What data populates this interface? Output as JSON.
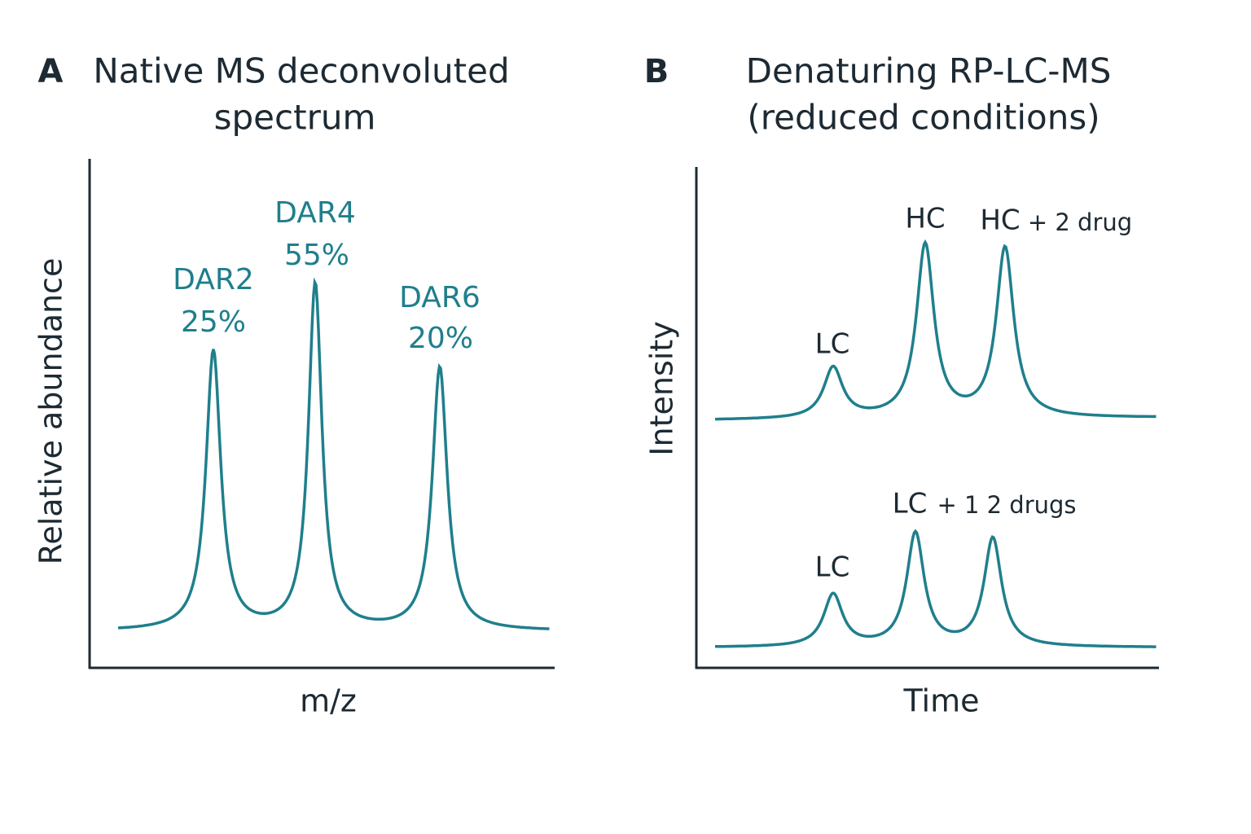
{
  "panels": [
    {
      "letter": "A",
      "title": [
        "Native MS deconvoluted",
        "spectrum"
      ],
      "y_label": "Relative abundance",
      "x_label": "m/z",
      "peaks": [
        {
          "name": "DAR2",
          "percent": "25%"
        },
        {
          "name": "DAR4",
          "percent": "55%"
        },
        {
          "name": "DAR6",
          "percent": "20%"
        }
      ]
    },
    {
      "letter": "B",
      "title": [
        "Denaturing RP-LC-MS",
        "(reduced conditions)"
      ],
      "y_label": "Intensity",
      "x_label": "Time",
      "traces": [
        {
          "labels": [
            "LC",
            "HC",
            "HC",
            "+ 2 drug"
          ]
        },
        {
          "labels": [
            "LC",
            "LC",
            "+ 1 2 drugs"
          ]
        }
      ]
    }
  ]
}
